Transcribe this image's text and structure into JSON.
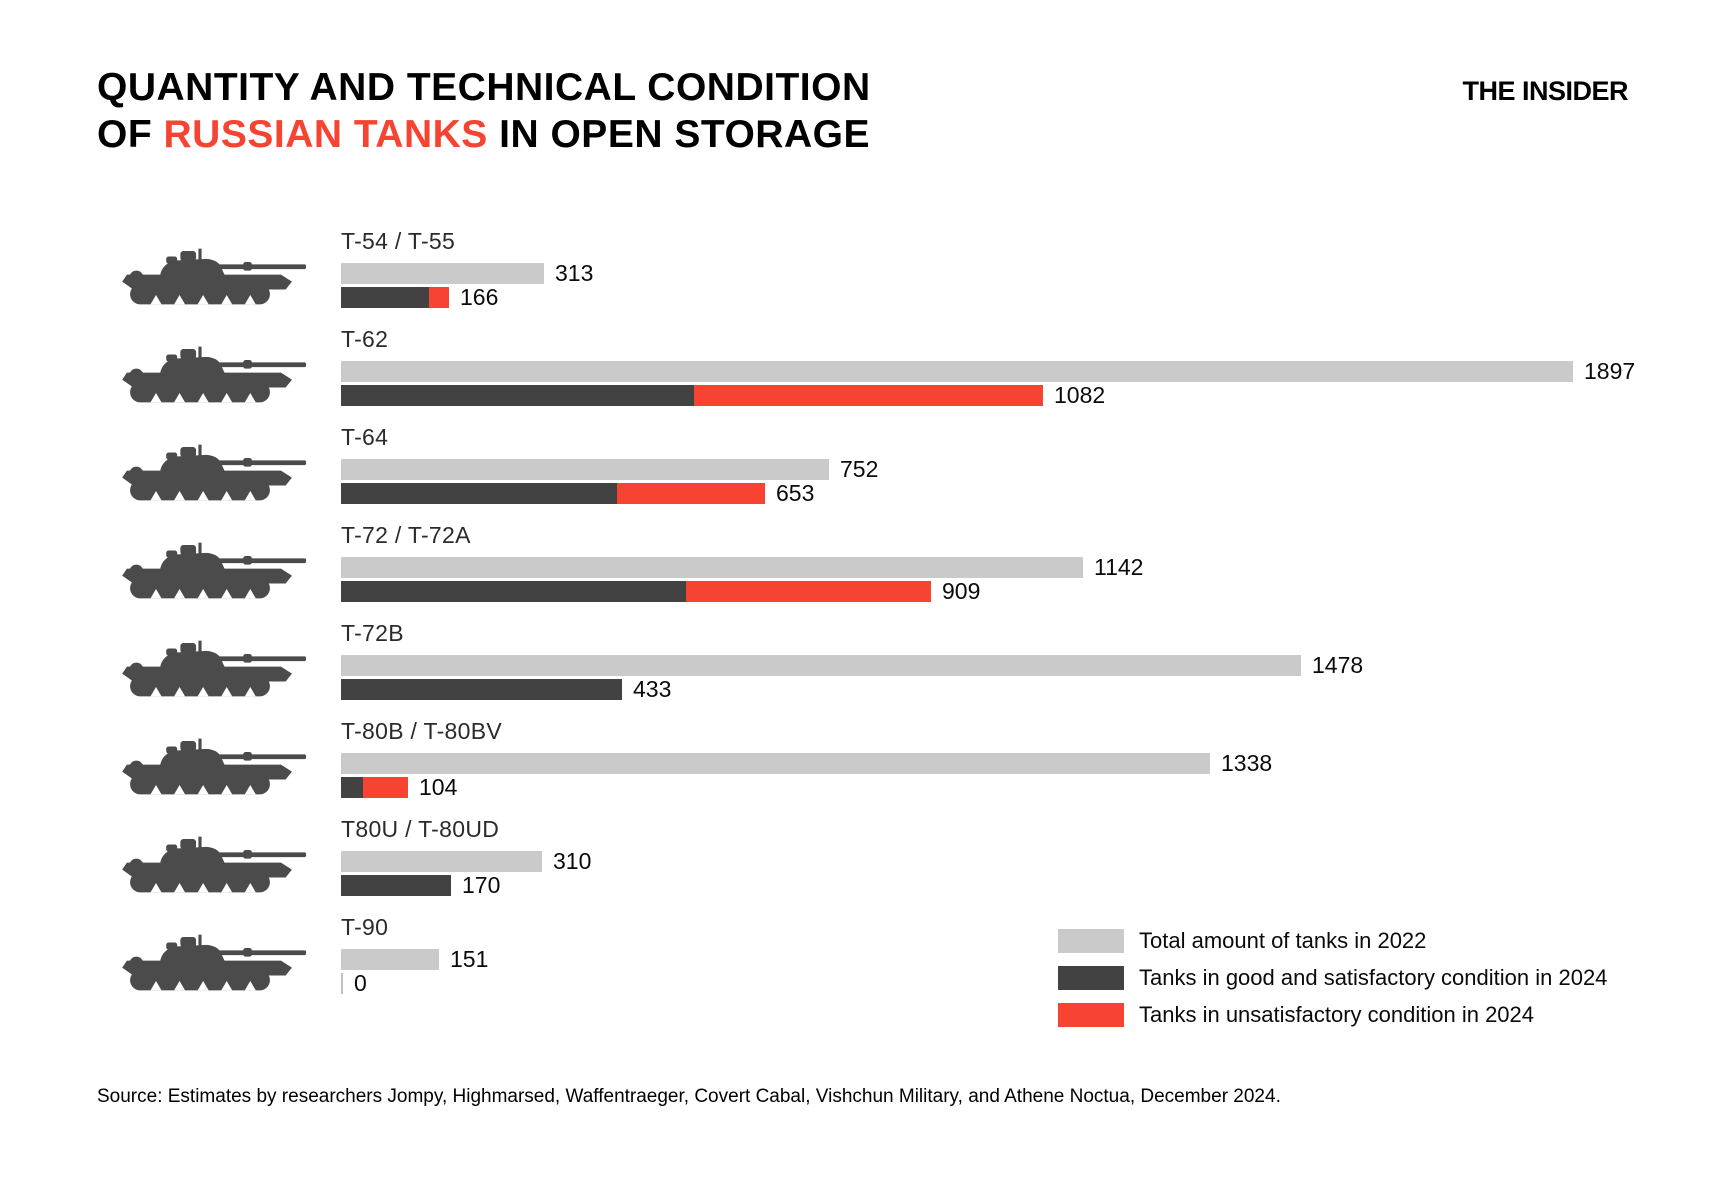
{
  "header": {
    "title_line1": "QUANTITY AND TECHNICAL CONDITION",
    "title_line2_prefix": "OF ",
    "title_line2_highlight": "RUSSIAN TANKS",
    "title_line2_suffix": " IN OPEN STORAGE",
    "logo": "THE INSIDER"
  },
  "colors": {
    "total_gray": "#cacaca",
    "good_dark": "#424242",
    "unsat_red": "#f74331",
    "tank_icon": "#4b4b4b"
  },
  "chart_data": {
    "type": "bar",
    "orientation": "horizontal",
    "max_value": 1897,
    "value_axis_hidden": true,
    "legend_position": "bottom-right",
    "legend": [
      {
        "key": "total_2022",
        "label": "Total amount of tanks in 2022",
        "color": "#cacaca"
      },
      {
        "key": "good_2024",
        "label": "Tanks in good and satisfactory condition in 2024",
        "color": "#424242"
      },
      {
        "key": "unsat_2024",
        "label": "Tanks in unsatisfactory condition in 2024",
        "color": "#f74331"
      }
    ],
    "rows": [
      {
        "label": "T-54 / T-55",
        "total_2022": 313,
        "condition_2024_total": 166,
        "good_2024_est": 135,
        "unsat_2024_est": 31
      },
      {
        "label": "T-62",
        "total_2022": 1897,
        "condition_2024_total": 1082,
        "good_2024_est": 544,
        "unsat_2024_est": 538
      },
      {
        "label": "T-64",
        "total_2022": 752,
        "condition_2024_total": 653,
        "good_2024_est": 425,
        "unsat_2024_est": 228
      },
      {
        "label": "T-72 / T-72A",
        "total_2022": 1142,
        "condition_2024_total": 909,
        "good_2024_est": 531,
        "unsat_2024_est": 378
      },
      {
        "label": "T-72B",
        "total_2022": 1478,
        "condition_2024_total": 433,
        "good_2024_est": 433,
        "unsat_2024_est": 0
      },
      {
        "label": "T-80B / T-80BV",
        "total_2022": 1338,
        "condition_2024_total": 104,
        "good_2024_est": 34,
        "unsat_2024_est": 70
      },
      {
        "label": "T80U / T-80UD",
        "total_2022": 310,
        "condition_2024_total": 170,
        "good_2024_est": 170,
        "unsat_2024_est": 0
      },
      {
        "label": "T-90",
        "total_2022": 151,
        "condition_2024_total": 0,
        "good_2024_est": 0,
        "unsat_2024_est": 0
      }
    ]
  },
  "source": "Source: Estimates by researchers Jompy, Highmarsed, Waffentraeger, Covert Cabal, Vishchun Military, and Athene Noctua, December 2024."
}
